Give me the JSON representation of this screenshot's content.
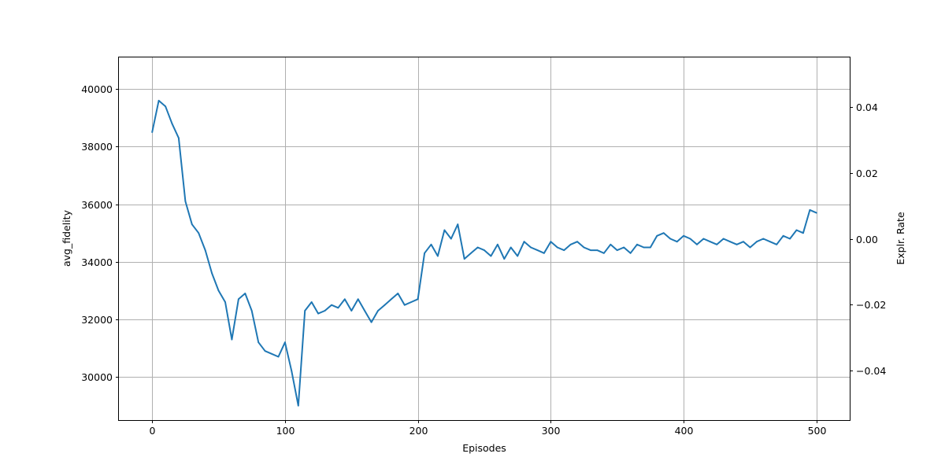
{
  "chart_data": {
    "type": "line",
    "xlabel": "Episodes",
    "ylabel": "avg_fidelity",
    "y2label": "Explr. Rate",
    "xlim": [
      -25,
      525
    ],
    "ylim": [
      28500,
      41100
    ],
    "y2lim": [
      -0.055,
      0.055
    ],
    "xticks": [
      0,
      100,
      200,
      300,
      400,
      500
    ],
    "yticks": [
      30000,
      32000,
      34000,
      36000,
      38000,
      40000
    ],
    "y2ticks": [
      -0.04,
      -0.02,
      0.0,
      0.02,
      0.04
    ],
    "y2tick_labels": [
      "−0.04",
      "−0.02",
      "0.00",
      "0.02",
      "0.04"
    ],
    "grid": true,
    "series": [
      {
        "color": "#1f77b4",
        "x_start": 0,
        "x_step": 5,
        "values": [
          38500,
          39600,
          39400,
          38800,
          38300,
          36100,
          35300,
          35000,
          34400,
          33600,
          33000,
          32600,
          31300,
          32700,
          32900,
          32300,
          31200,
          30900,
          30800,
          30700,
          31200,
          30200,
          29000,
          32300,
          32600,
          32200,
          32300,
          32500,
          32400,
          32700,
          32300,
          32700,
          32300,
          31900,
          32300,
          32500,
          32700,
          32900,
          32500,
          32600,
          32700,
          34300,
          34600,
          34200,
          35100,
          34800,
          35300,
          34100,
          34300,
          34500,
          34400,
          34200,
          34600,
          34100,
          34500,
          34200,
          34700,
          34500,
          34400,
          34300,
          34700,
          34500,
          34400,
          34600,
          34700,
          34500,
          34400,
          34400,
          34300,
          34600,
          34400,
          34500,
          34300,
          34600,
          34500,
          34500,
          34900,
          35000,
          34800,
          34700,
          34900,
          34800,
          34600,
          34800,
          34700,
          34600,
          34800,
          34700,
          34600,
          34700,
          34500,
          34700,
          34800,
          34700,
          34600,
          34900,
          34800,
          35100,
          35000,
          35800,
          35700
        ]
      }
    ]
  }
}
